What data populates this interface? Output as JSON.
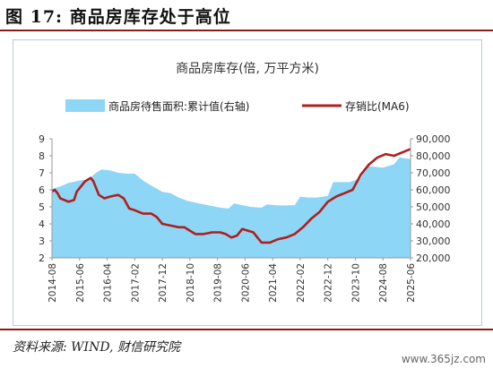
{
  "figure": {
    "label": "图 17:",
    "title": "商品房库存处于高位",
    "source": "资料来源: WIND, 财信研究院",
    "watermark": "www.365jz.com"
  },
  "colors": {
    "area": "#8dd6f5",
    "line": "#b01e1e",
    "rule": "#8b1a1a",
    "frame": "#b8cde0"
  },
  "chart_data": {
    "type": "line",
    "title": "商品房库存(倍, 万平方米)",
    "xlabel": "",
    "ylabel": "",
    "grid": false,
    "legend_position": "top",
    "x_start": "2014-08",
    "x_tick_labels": [
      "2014-08",
      "2015-06",
      "2016-04",
      "2017-02",
      "2017-12",
      "2018-10",
      "2019-08",
      "2020-06",
      "2021-04",
      "2022-02",
      "2022-12",
      "2023-10",
      "2024-08",
      "2025-06"
    ],
    "y_left": {
      "ticks": [
        2,
        3,
        4,
        5,
        6,
        7,
        8,
        9
      ],
      "range": [
        2,
        9
      ]
    },
    "y_right": {
      "ticks": [
        "20,000",
        "30,000",
        "40,000",
        "50,000",
        "60,000",
        "70,000",
        "80,000",
        "90,000"
      ],
      "range": [
        20000,
        90000
      ]
    },
    "series": [
      {
        "name": "商品房待售面积:累计值(右轴)",
        "type": "area",
        "axis": "right",
        "points": [
          [
            "2014-08",
            60500
          ],
          [
            "2014-11",
            62000
          ],
          [
            "2015-02",
            64000
          ],
          [
            "2015-06",
            65500
          ],
          [
            "2015-09",
            66000
          ],
          [
            "2015-12",
            70000
          ],
          [
            "2016-02",
            72000
          ],
          [
            "2016-05",
            71500
          ],
          [
            "2016-08",
            70000
          ],
          [
            "2016-11",
            69500
          ],
          [
            "2017-02",
            69500
          ],
          [
            "2017-05",
            65500
          ],
          [
            "2017-08",
            62500
          ],
          [
            "2017-12",
            58800
          ],
          [
            "2018-03",
            58000
          ],
          [
            "2018-06",
            55500
          ],
          [
            "2018-09",
            53500
          ],
          [
            "2018-12",
            52500
          ],
          [
            "2019-03",
            51500
          ],
          [
            "2019-06",
            50500
          ],
          [
            "2019-09",
            49500
          ],
          [
            "2019-12",
            49000
          ],
          [
            "2020-02",
            52000
          ],
          [
            "2020-05",
            51000
          ],
          [
            "2020-08",
            50000
          ],
          [
            "2020-12",
            49500
          ],
          [
            "2021-02",
            51500
          ],
          [
            "2021-05",
            51000
          ],
          [
            "2021-08",
            50800
          ],
          [
            "2021-12",
            51000
          ],
          [
            "2022-02",
            56000
          ],
          [
            "2022-05",
            55500
          ],
          [
            "2022-08",
            55500
          ],
          [
            "2022-12",
            56500
          ],
          [
            "2023-02",
            64500
          ],
          [
            "2023-05",
            64500
          ],
          [
            "2023-08",
            64500
          ],
          [
            "2023-12",
            67000
          ],
          [
            "2024-02",
            74000
          ],
          [
            "2024-05",
            73500
          ],
          [
            "2024-08",
            73000
          ],
          [
            "2024-12",
            75000
          ],
          [
            "2025-02",
            79000
          ],
          [
            "2025-06",
            78000
          ]
        ]
      },
      {
        "name": "存销比(MA6)",
        "type": "line",
        "axis": "left",
        "points": [
          [
            "2014-08",
            5.9
          ],
          [
            "2014-09",
            6.0
          ],
          [
            "2014-10",
            5.8
          ],
          [
            "2014-11",
            5.5
          ],
          [
            "2015-02",
            5.3
          ],
          [
            "2015-04",
            5.4
          ],
          [
            "2015-05",
            5.9
          ],
          [
            "2015-08",
            6.5
          ],
          [
            "2015-10",
            6.7
          ],
          [
            "2015-11",
            6.5
          ],
          [
            "2016-01",
            5.7
          ],
          [
            "2016-03",
            5.5
          ],
          [
            "2016-05",
            5.6
          ],
          [
            "2016-08",
            5.7
          ],
          [
            "2016-10",
            5.5
          ],
          [
            "2016-12",
            4.9
          ],
          [
            "2017-02",
            4.8
          ],
          [
            "2017-05",
            4.6
          ],
          [
            "2017-08",
            4.6
          ],
          [
            "2017-10",
            4.4
          ],
          [
            "2017-12",
            4.0
          ],
          [
            "2018-03",
            3.9
          ],
          [
            "2018-06",
            3.8
          ],
          [
            "2018-08",
            3.8
          ],
          [
            "2018-10",
            3.6
          ],
          [
            "2018-12",
            3.4
          ],
          [
            "2019-03",
            3.4
          ],
          [
            "2019-06",
            3.5
          ],
          [
            "2019-09",
            3.5
          ],
          [
            "2019-11",
            3.4
          ],
          [
            "2020-01",
            3.2
          ],
          [
            "2020-03",
            3.3
          ],
          [
            "2020-05",
            3.7
          ],
          [
            "2020-07",
            3.6
          ],
          [
            "2020-09",
            3.5
          ],
          [
            "2020-12",
            2.9
          ],
          [
            "2021-03",
            2.9
          ],
          [
            "2021-06",
            3.1
          ],
          [
            "2021-09",
            3.2
          ],
          [
            "2021-12",
            3.4
          ],
          [
            "2022-03",
            3.8
          ],
          [
            "2022-06",
            4.3
          ],
          [
            "2022-09",
            4.7
          ],
          [
            "2022-12",
            5.3
          ],
          [
            "2023-03",
            5.6
          ],
          [
            "2023-06",
            5.8
          ],
          [
            "2023-09",
            6.0
          ],
          [
            "2023-12",
            6.9
          ],
          [
            "2024-03",
            7.5
          ],
          [
            "2024-06",
            7.9
          ],
          [
            "2024-09",
            8.1
          ],
          [
            "2024-12",
            8.0
          ],
          [
            "2025-03",
            8.2
          ],
          [
            "2025-06",
            8.4
          ]
        ]
      }
    ]
  }
}
